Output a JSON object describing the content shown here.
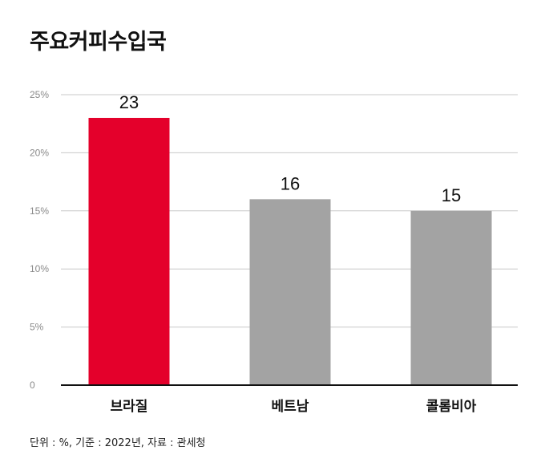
{
  "chart_data": {
    "type": "bar",
    "title": "주요커피수입국",
    "categories": [
      "브라질",
      "베트남",
      "콜롬비아"
    ],
    "values": [
      23,
      16,
      15
    ],
    "value_labels": [
      "23",
      "16",
      "15"
    ],
    "ylim": [
      0,
      25
    ],
    "yticks": [
      0,
      5,
      10,
      15,
      20,
      25
    ],
    "ytick_labels": [
      "0",
      "5%",
      "10%",
      "15%",
      "20%",
      "25%"
    ],
    "grid": true,
    "bar_colors": [
      "#e4002b",
      "#a3a3a3",
      "#a3a3a3"
    ],
    "note": "단위 : %, 기준 : 2022년, 자료 : 관세청"
  }
}
